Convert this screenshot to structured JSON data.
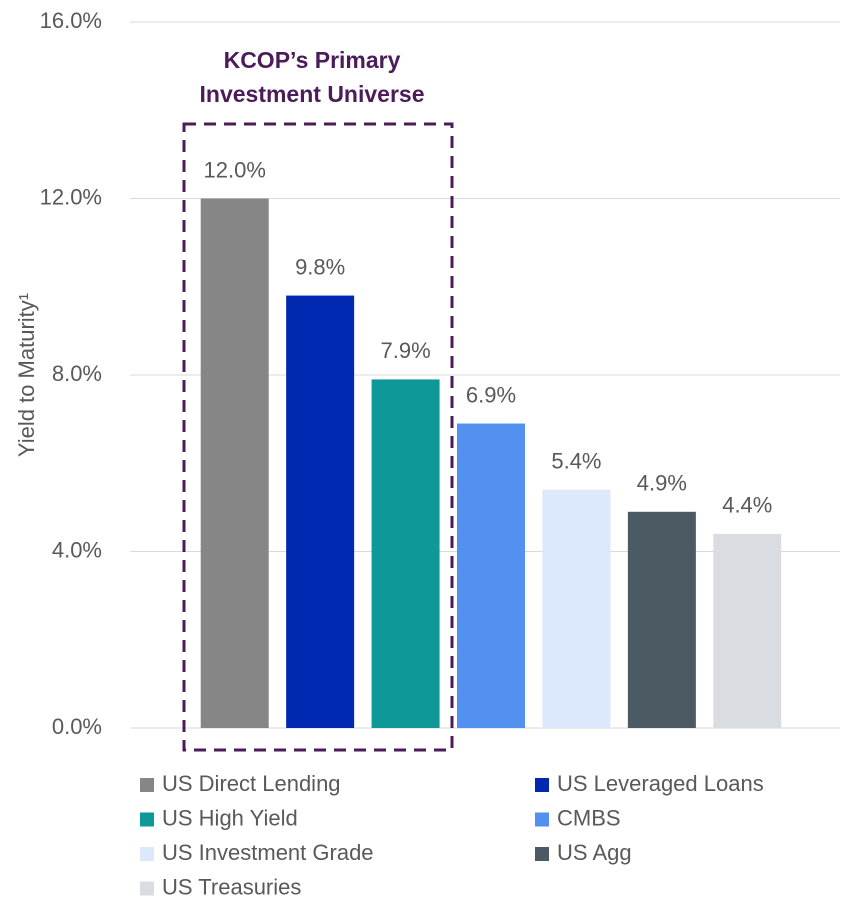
{
  "chart_data": {
    "type": "bar",
    "y_label": "Yield to Maturity¹",
    "annotation": [
      "KCOP’s Primary",
      "Investment Universe"
    ],
    "categories": [
      "US Direct Lending",
      "US Leveraged Loans",
      "US High Yield",
      "CMBS",
      "US Investment Grade",
      "US Agg",
      "US Treasuries"
    ],
    "values": [
      12.0,
      9.8,
      7.9,
      6.9,
      5.4,
      4.9,
      4.4
    ],
    "value_labels": [
      "12.0%",
      "9.8%",
      "7.9%",
      "6.9%",
      "5.4%",
      "4.9%",
      "4.4%"
    ],
    "colors": [
      "#868686",
      "#0028b0",
      "#0e9898",
      "#5291f0",
      "#dce8fb",
      "#4b5a63",
      "#d9dde1"
    ],
    "ylim": [
      0,
      16
    ],
    "yticks": [
      {
        "value": 0,
        "label": "0.0%"
      },
      {
        "value": 4,
        "label": "4.0%"
      },
      {
        "value": 8,
        "label": "8.0%"
      },
      {
        "value": 12,
        "label": "12.0%"
      },
      {
        "value": 16,
        "label": "16.0%"
      }
    ],
    "grid": true
  }
}
